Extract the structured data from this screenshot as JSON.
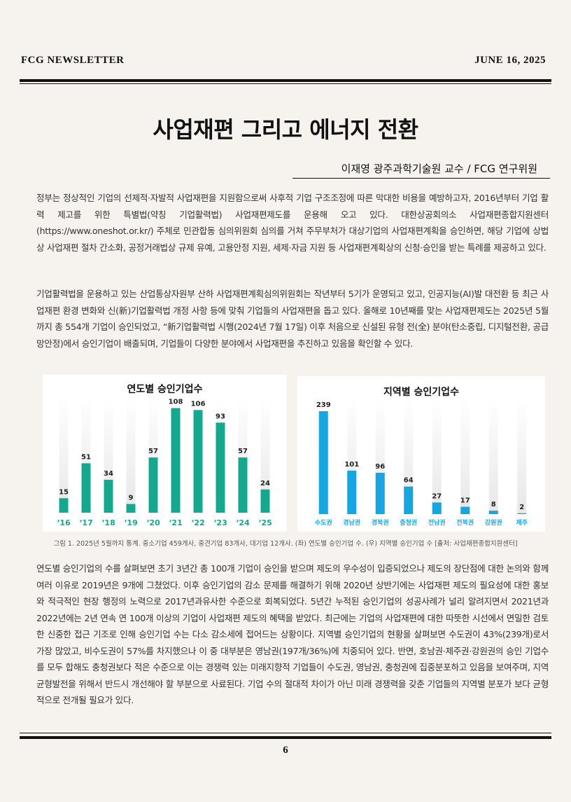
{
  "header": {
    "newsletter": "FCG NEWSLETTER",
    "date": "JUNE 16, 2025"
  },
  "article": {
    "title": "사업재편 그리고 에너지 전환",
    "byline": "이재영 광주과학기술원 교수 / FCG 연구위원",
    "para1": "정부는 정상적인 기업의 선제적·자발적 사업재편을 지원함으로써 사후적 기업 구조조정에 따른 막대한 비용을 예방하고자, 2016년부터 기업 활력 제고를 위한 특별법(약칭 기업활력법) 사업재편제도를 운용해 오고 있다. 대한상공회의소 사업재편종합지원센터(https://www.oneshot.or.kr/) 주체로 민관합동 심의위원회 심의를 거쳐 주무부처가 대상기업의 사업재편계획을 승인하면, 해당 기업에 상법상 사업재편 절차 간소화, 공정거래법상 규제 유예, 고용안정 지원, 세제·자금 지원 등 사업재편계획상의 신청·승인을 받는 특례를 제공하고 있다.",
    "para2": " 기업활력법을 운용하고 있는 산업통상자원부 산하 사업재편계획심의위원회는 작년부터 5기가 운영되고 있고, 인공지능(AI)발 대전환 등 최근 사업재편 환경 변화와 신(新)기업활력법 개정 사항 등에 맞춰 기업들의 사업재편을 돕고 있다. 올해로 10년째를 맞는 사업재편제도는 2025년 5월까지 총 554개 기업이 승인되었고, “新기업활력법 시행(2024년 7월 17일) 이후 처음으로 신설된 유형 전(全) 분야(탄소중립, 디지털전환, 공급망안정)에서 승인기업이 배출되며, 기업들이 다양한 분야에서 사업재편을 추진하고 있음을 확인할 수 있다.",
    "caption": "그림 1. 2025년 5월까지 통계. 중소기업 459개사, 중견기업 83개사, 대기업 12개사. (좌) 연도별 승인기업 수. (우) 지역별 승인기업 수 [출처: 사업재편종합지원센터]",
    "para3": "연도별 승인기업의 수를 살펴보면 초기 3년간 총 100개 기업이 승인을 받으며 제도의 우수성이 입증되었으나 제도의 장단점에 대한 논의와 함께 여러 이유로 2019년은 9개에 그쳤었다. 이후 승인기업의 감소 문제를 해결하기 위해 2020년 상반기에는 사업재편 제도의 필요성에 대한 홍보와 적극적인 현장 행정의 노력으로 2017년과유사한 수준으로 회복되었다. 5년간 누적된 승인기업의 성공사례가 널리 알려지면서 2021년과 2022년에는 2년 연속 연 100개 이상의 기업이 사업재편 제도의 혜택을 받았다. 최근에는 기업의 사업재편에 대한 따뜻한 시선에서 면밀한 검토한 신중한 접근 기조로 인해 승인기업 수는 다소 감소세에 접어드는 상황이다. 지역별 승인기업의 현황을 살펴보면 수도권이 43%(239개)로서 가장 많았고, 비수도권이 57%를 차지했으나 이 중 대부분은 영남권(197개/36%)에 치중되어 있다. 반면, 호남권·제주권·강원권의 승인 기업수를 모두 합해도 충청권보다 적은 수준으로 이는 경쟁력 있는 미래지향적 기업들이 수도권, 영남권, 충청권에 집중분포하고 있음을 보여주며, 지역균형발전을 위해서 반드시 개선해야 할 부분으로 사료된다. 기업 수의 절대적 차이가 아닌 미래 경쟁력을 갖춘 기업들의 지역별 분포가 보다 균형적으로 전개될 필요가 있다."
  },
  "chart_data": [
    {
      "type": "bar",
      "title": "연도별 승인기업수",
      "categories": [
        "‘16",
        "‘17",
        "‘18",
        "‘19",
        "‘20",
        "‘21",
        "‘22",
        "‘23",
        "‘24",
        "‘25"
      ],
      "values": [
        15,
        51,
        34,
        9,
        57,
        108,
        106,
        93,
        57,
        24
      ],
      "ylim": [
        0,
        120
      ],
      "color": "#14a88e",
      "xlabel": "",
      "ylabel": ""
    },
    {
      "type": "bar",
      "title": "지역별 승인기업수",
      "categories": [
        "수도권",
        "경남권",
        "경북권",
        "충청권",
        "전남권",
        "전북권",
        "강원권",
        "제주"
      ],
      "values": [
        239,
        101,
        96,
        64,
        27,
        17,
        8,
        2
      ],
      "ylim": [
        0,
        270
      ],
      "color": "#17a6df",
      "xlabel": "",
      "ylabel": ""
    }
  ],
  "page": {
    "number": "6"
  }
}
